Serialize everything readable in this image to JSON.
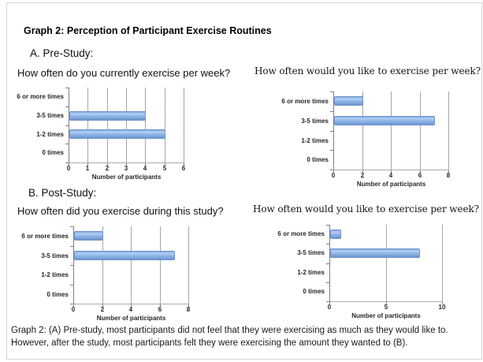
{
  "header": {
    "title": "Graph 2: Perception of Participant Exercise Routines"
  },
  "sections": {
    "pre_label": "A. Pre-Study:",
    "post_label": "B. Post-Study:"
  },
  "caption": {
    "line1": "Graph 2: (A) Pre-study, most participants did not feel that they were exercising as much as they would like to.",
    "line2": "However, after the study, most participants felt they were exercising the amount they wanted to (B)."
  },
  "colors": {
    "bar_top": "#7ba6de",
    "bar_light": "#b3d0f2",
    "bar_mid": "#8fb4e6",
    "bar_bottom": "#6c96d0",
    "bar_border": "#6f94c9",
    "gridline": "#a6a6a6",
    "axis_line": "#7f7f7f"
  },
  "chart_data": [
    {
      "type": "bar",
      "orientation": "horizontal",
      "title": "How often do you currently exercise per week?",
      "categories": [
        "6 or more times",
        "3-5 times",
        "1-2 times",
        "0 times"
      ],
      "values": [
        0,
        4,
        5,
        0
      ],
      "xlabel": "Number of participants",
      "xlim": [
        0,
        6
      ],
      "xticks": [
        0,
        1,
        2,
        3,
        4,
        5,
        6
      ],
      "grid": true,
      "legend": "none"
    },
    {
      "type": "bar",
      "orientation": "horizontal",
      "title": "How often would you like to exercise per week?",
      "categories": [
        "6 or more times",
        "3-5 times",
        "1-2 times",
        "0 times"
      ],
      "values": [
        2,
        7,
        0,
        0
      ],
      "xlabel": "Number of participants",
      "xlim": [
        0,
        8
      ],
      "xticks": [
        0,
        2,
        4,
        6,
        8
      ],
      "grid": true,
      "legend": "none"
    },
    {
      "type": "bar",
      "orientation": "horizontal",
      "title": "How often did you exercise during this study?",
      "categories": [
        "6 or more times",
        "3-5 times",
        "1-2 times",
        "0 times"
      ],
      "values": [
        2,
        7,
        0,
        0
      ],
      "xlabel": "Number of participants",
      "xlim": [
        0,
        8
      ],
      "xticks": [
        0,
        2,
        4,
        6,
        8
      ],
      "grid": true,
      "legend": "none"
    },
    {
      "type": "bar",
      "orientation": "horizontal",
      "title": "How often would you like to exercise per week?",
      "categories": [
        "6 or more times",
        "3-5 times",
        "1-2 times",
        "0 times"
      ],
      "values": [
        1,
        8,
        0,
        0
      ],
      "xlabel": "Number of participants",
      "xlim": [
        0,
        10
      ],
      "xticks": [
        0,
        5,
        10
      ],
      "grid": true,
      "legend": "none"
    }
  ]
}
